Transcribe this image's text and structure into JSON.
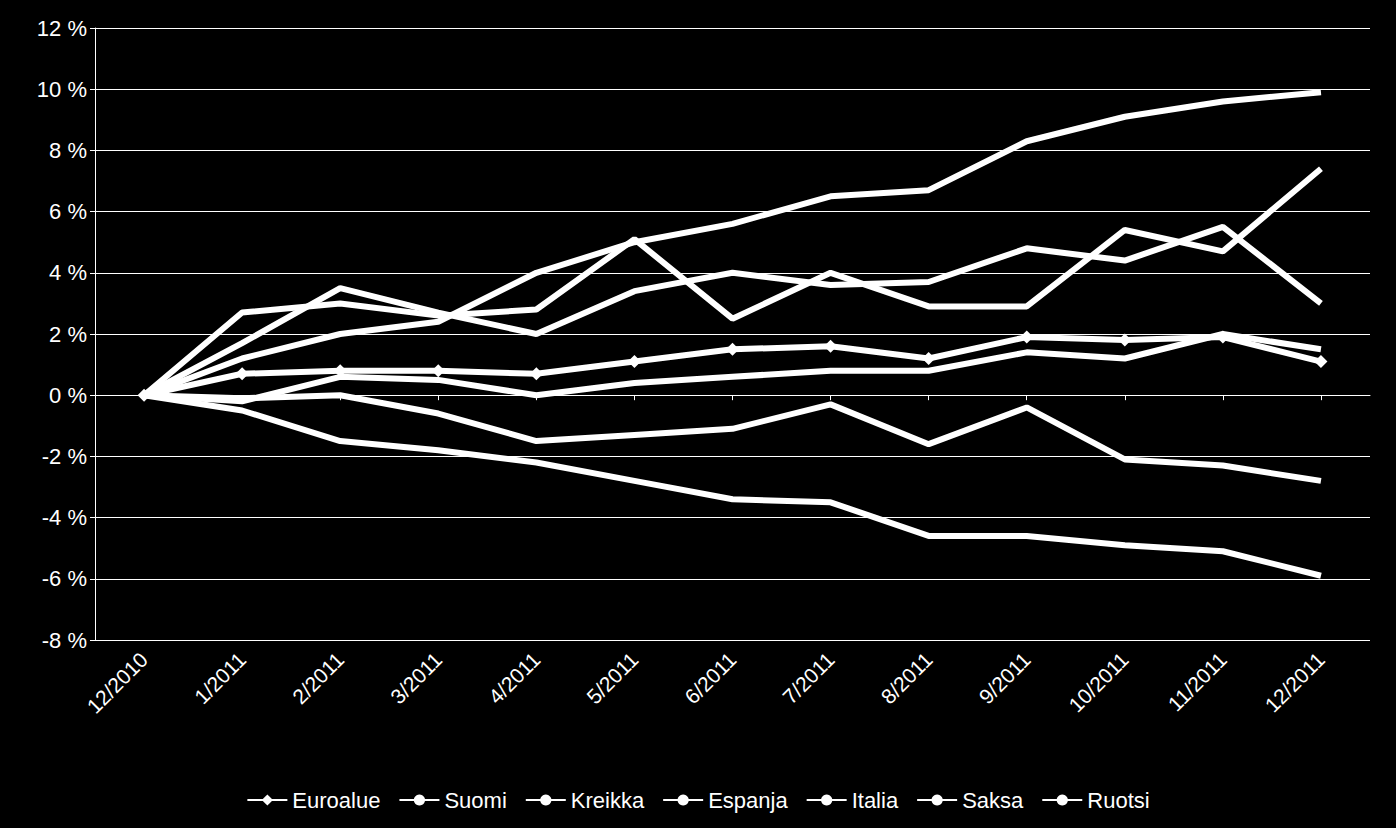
{
  "chart_data": {
    "type": "line",
    "categories": [
      "12/2010",
      "1/2011",
      "2/2011",
      "3/2011",
      "4/2011",
      "5/2011",
      "6/2011",
      "7/2011",
      "8/2011",
      "9/2011",
      "10/2011",
      "11/2011",
      "12/2011"
    ],
    "series": [
      {
        "name": "Euroalue",
        "color": "#ffffff",
        "marker": "diamond",
        "values": [
          0,
          0.7,
          0.8,
          0.8,
          0.7,
          1.1,
          1.5,
          1.6,
          1.2,
          1.9,
          1.8,
          1.9,
          1.1
        ]
      },
      {
        "name": "Suomi",
        "color": "#ffffff",
        "marker": "none",
        "values": [
          0,
          1.7,
          3.5,
          2.7,
          2.0,
          3.4,
          4.0,
          3.6,
          3.7,
          4.8,
          4.4,
          5.5,
          3.0
        ]
      },
      {
        "name": "Kreikka",
        "color": "#ffffff",
        "marker": "none",
        "values": [
          0,
          -0.5,
          -1.5,
          -1.8,
          -2.2,
          -2.8,
          -3.4,
          -3.5,
          -4.6,
          -4.6,
          -4.9,
          -5.1,
          -5.9
        ]
      },
      {
        "name": "Espanja",
        "color": "#ffffff",
        "marker": "none",
        "values": [
          0,
          -0.1,
          0.0,
          -0.6,
          -1.5,
          -1.3,
          -1.1,
          -0.3,
          -1.6,
          -0.4,
          -2.1,
          -2.3,
          -2.8
        ]
      },
      {
        "name": "Italia",
        "color": "#ffffff",
        "marker": "none",
        "values": [
          0,
          -0.2,
          0.6,
          0.5,
          0.0,
          0.4,
          0.6,
          0.8,
          0.8,
          1.4,
          1.2,
          2.0,
          1.5
        ]
      },
      {
        "name": "Saksa",
        "color": "#ffffff",
        "marker": "none",
        "values": [
          0,
          2.7,
          3.0,
          2.6,
          2.8,
          5.1,
          2.5,
          4.0,
          2.9,
          2.9,
          5.4,
          4.7,
          7.4
        ]
      },
      {
        "name": "Ruotsi",
        "color": "#ffffff",
        "marker": "none",
        "values": [
          0,
          1.2,
          2.0,
          2.4,
          4.0,
          5.0,
          5.6,
          6.5,
          6.7,
          8.3,
          9.1,
          9.6,
          9.9
        ]
      }
    ],
    "ylim": [
      -8,
      12
    ],
    "yticks": [
      {
        "value": -8,
        "label": "-8 %"
      },
      {
        "value": -6,
        "label": "-6 %"
      },
      {
        "value": -4,
        "label": "-4 %"
      },
      {
        "value": -2,
        "label": "-2 %"
      },
      {
        "value": 0,
        "label": "0 %"
      },
      {
        "value": 2,
        "label": "2 %"
      },
      {
        "value": 4,
        "label": "4 %"
      },
      {
        "value": 6,
        "label": "6 %"
      },
      {
        "value": 8,
        "label": "8 %"
      },
      {
        "value": 10,
        "label": "10 %"
      },
      {
        "value": 12,
        "label": "12 %"
      }
    ],
    "grid": true,
    "legend": "bottom"
  }
}
